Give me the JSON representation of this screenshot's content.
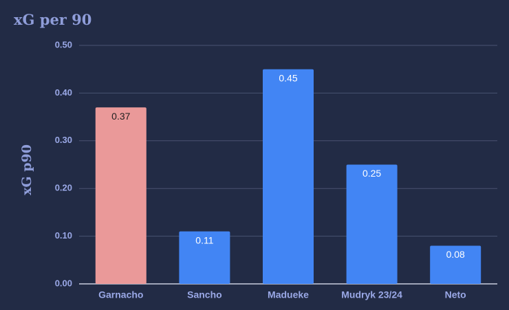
{
  "chart_data": {
    "type": "bar",
    "title": "xG per 90",
    "xlabel": "",
    "ylabel": "xG p90",
    "categories": [
      "Garnacho",
      "Sancho",
      "Madueke",
      "Mudryk 23/24",
      "Neto"
    ],
    "values": [
      0.37,
      0.11,
      0.45,
      0.25,
      0.08
    ],
    "value_labels": [
      "0.37",
      "0.11",
      "0.45",
      "0.25",
      "0.08"
    ],
    "bar_colors": [
      "#ea9999",
      "#4285f4",
      "#4285f4",
      "#4285f4",
      "#4285f4"
    ],
    "label_colors": [
      "#1f1f1f",
      "#ffffff",
      "#ffffff",
      "#ffffff",
      "#ffffff"
    ],
    "ylim": [
      0,
      0.5
    ],
    "yticks": [
      0,
      0.1,
      0.2,
      0.3,
      0.4,
      0.5
    ],
    "ytick_labels": [
      "0.00",
      "0.10",
      "0.20",
      "0.30",
      "0.40",
      "0.50"
    ],
    "grid": true,
    "legend": "none"
  },
  "colors": {
    "background": "#222b45",
    "gridline": "#4a5372",
    "axis_text": "#9aa8e6",
    "title": "#8f9dd9"
  }
}
